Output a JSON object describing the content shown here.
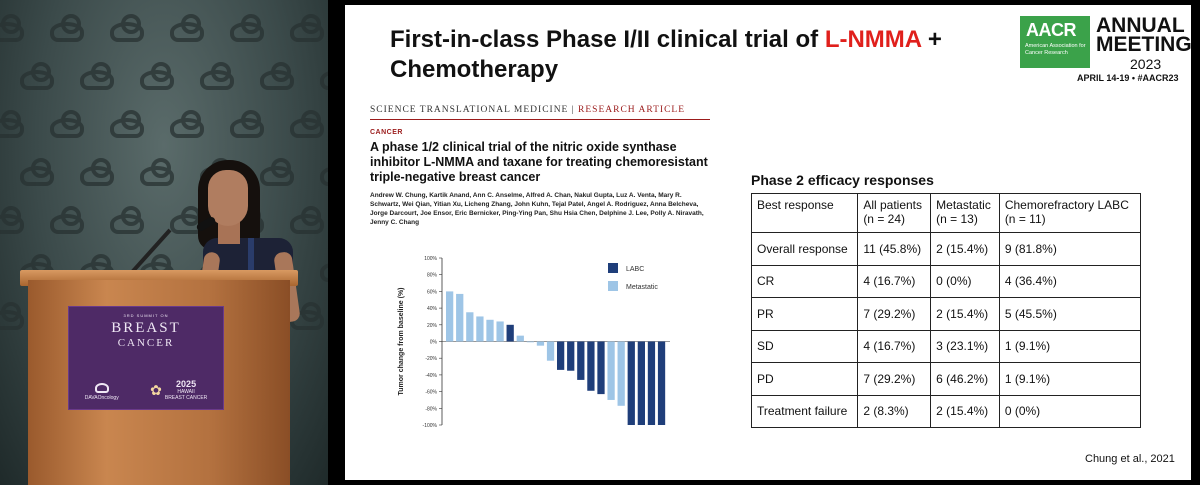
{
  "stage": {
    "podium": {
      "summit": "3RD SUMMIT ON",
      "line1": "BREAST",
      "line2": "CANCER",
      "sponsor": "DAVAOncology",
      "year": "2025",
      "place": "HAWAII",
      "place_sub": "BREAST CANCER"
    }
  },
  "slide": {
    "title_pre": "First-in-class Phase I/II clinical trial of ",
    "title_highlight": "L-NMMA",
    "title_post": " + Chemotherapy",
    "aacr": {
      "logo": "AACR",
      "org": "American Association for Cancer Research",
      "annual": "ANNUAL",
      "meeting": "MEETING",
      "year": "2023",
      "dates": "APRIL 14-19 • #AACR23"
    },
    "paper": {
      "journal": "SCIENCE TRANSLATIONAL MEDICINE",
      "separator": " | ",
      "article_type": "RESEARCH ARTICLE",
      "category": "CANCER",
      "title": "A phase 1/2 clinical trial of the nitric oxide synthase inhibitor L-NMMA and taxane for treating chemoresistant triple-negative breast cancer",
      "authors": "Andrew W. Chung, Kartik Anand, Ann C. Anselme, Alfred A. Chan, Nakul Gupta, Luz A. Venta, Mary R. Schwartz, Wei Qian, Yitian Xu, Licheng Zhang, John Kuhn, Tejal Patel, Angel A. Rodriguez, Anna Belcheva, Jorge Darcourt, Joe Ensor, Eric Bernicker, Ping-Ying Pan, Shu Hsia Chen, Delphine J. Lee, Polly A. Niravath, Jenny C. Chang"
    },
    "table": {
      "title": "Phase 2 efficacy responses",
      "headers": [
        {
          "main": "Best response",
          "sub": ""
        },
        {
          "main": "All patients",
          "sub": "(n = 24)"
        },
        {
          "main": "Metastatic",
          "sub": "(n = 13)"
        },
        {
          "main": "Chemorefractory LABC",
          "sub": "(n = 11)"
        }
      ],
      "rows": [
        [
          "Overall response",
          "11 (45.8%)",
          "2 (15.4%)",
          "9 (81.8%)"
        ],
        [
          "CR",
          "4 (16.7%)",
          "0 (0%)",
          "4 (36.4%)"
        ],
        [
          "PR",
          "7 (29.2%)",
          "2 (15.4%)",
          "5 (45.5%)"
        ],
        [
          "SD",
          "4 (16.7%)",
          "3 (23.1%)",
          "1 (9.1%)"
        ],
        [
          "PD",
          "7 (29.2%)",
          "6 (46.2%)",
          "1 (9.1%)"
        ],
        [
          "Treatment failure",
          "2 (8.3%)",
          "2 (15.4%)",
          "0 (0%)"
        ]
      ]
    },
    "citation": "Chung et al., 2021"
  },
  "colors": {
    "labc": "#1f3e7a",
    "metastatic": "#9ec5e6",
    "highlight": "#e0201c",
    "aacr_green": "#3ba24a"
  },
  "chart_data": {
    "type": "bar",
    "ylabel": "Tumor change from baseline (%)",
    "ylim": [
      -100,
      100
    ],
    "yticks": [
      "100%",
      "80%",
      "60%",
      "40%",
      "20%",
      "0%",
      "-20%",
      "-40%",
      "-60%",
      "-80%",
      "-100%"
    ],
    "series": [
      {
        "name": "LABC",
        "color": "#1f3e7a"
      },
      {
        "name": "Metastatic",
        "color": "#9ec5e6"
      }
    ],
    "bars": [
      {
        "value": 60,
        "series": "Metastatic"
      },
      {
        "value": 57,
        "series": "Metastatic"
      },
      {
        "value": 35,
        "series": "Metastatic"
      },
      {
        "value": 30,
        "series": "Metastatic"
      },
      {
        "value": 26,
        "series": "Metastatic"
      },
      {
        "value": 24,
        "series": "Metastatic"
      },
      {
        "value": 20,
        "series": "LABC"
      },
      {
        "value": 7,
        "series": "Metastatic"
      },
      {
        "value": 0,
        "series": "Metastatic"
      },
      {
        "value": -5,
        "series": "Metastatic"
      },
      {
        "value": -23,
        "series": "Metastatic"
      },
      {
        "value": -34,
        "series": "LABC"
      },
      {
        "value": -35,
        "series": "LABC"
      },
      {
        "value": -46,
        "series": "LABC"
      },
      {
        "value": -59,
        "series": "LABC"
      },
      {
        "value": -63,
        "series": "LABC"
      },
      {
        "value": -70,
        "series": "Metastatic"
      },
      {
        "value": -77,
        "series": "Metastatic"
      },
      {
        "value": -100,
        "series": "LABC"
      },
      {
        "value": -100,
        "series": "LABC"
      },
      {
        "value": -100,
        "series": "LABC"
      },
      {
        "value": -100,
        "series": "LABC"
      }
    ]
  }
}
